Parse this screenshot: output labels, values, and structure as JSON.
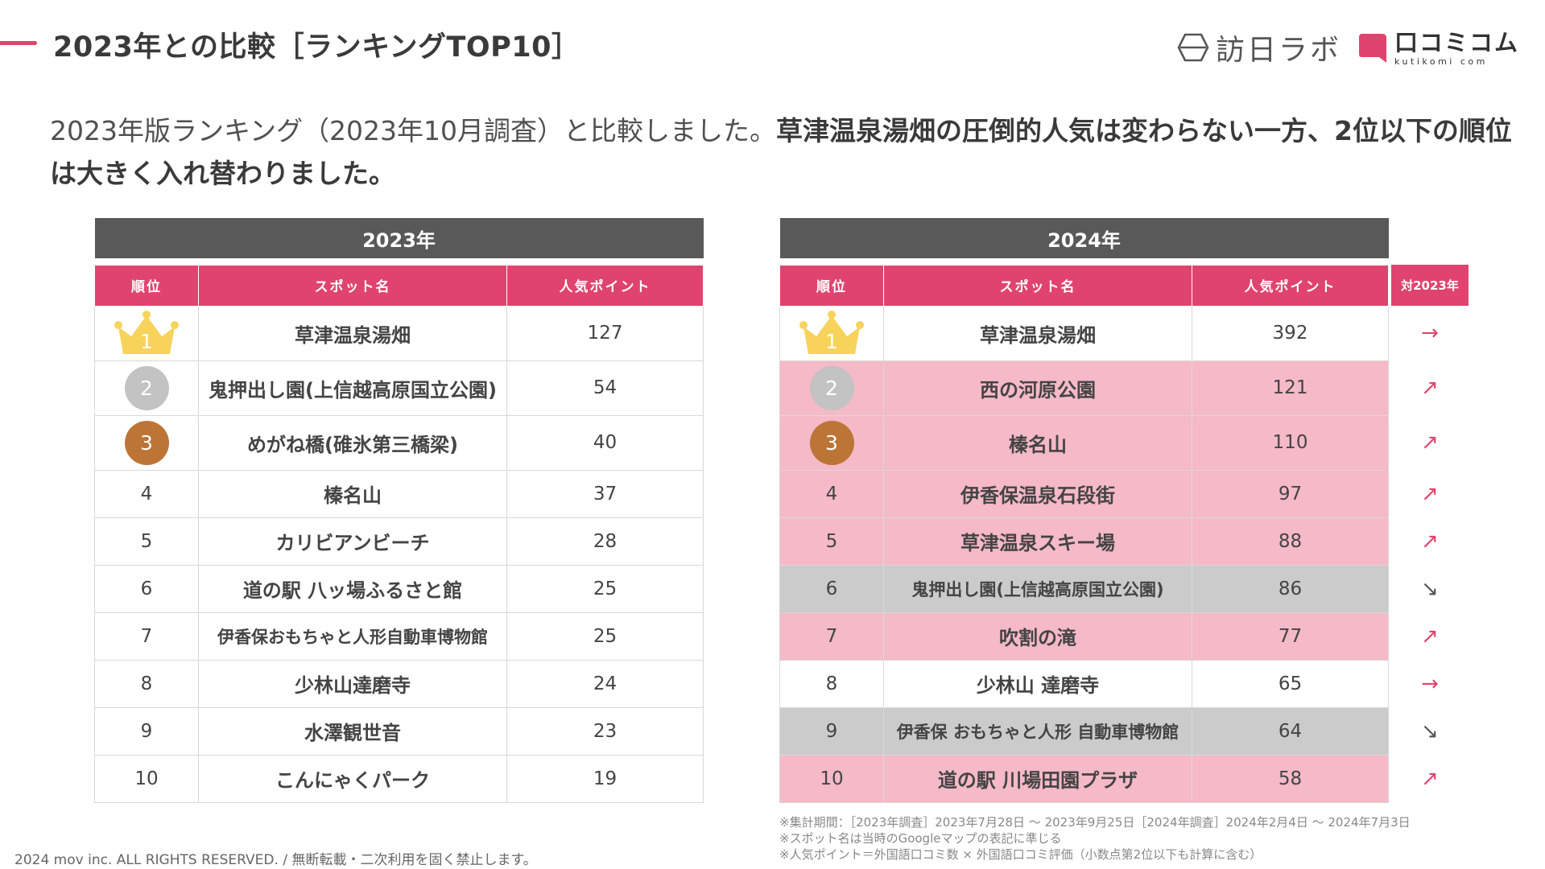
{
  "colors": {
    "accent": "#e0446e",
    "header_dark": "#595959",
    "row_pink": "#f5b9c7",
    "row_gray": "#cbcbcb",
    "gold": "#f7d35c",
    "silver": "#c3c3c3",
    "bronze": "#bd7536",
    "arrow_red": "#e0446e"
  },
  "page": {
    "title": "2023年との比較［ランキングTOP10］",
    "lead_normal": "2023年版ランキング（2023年10月調査）と比較しました。",
    "lead_bold": "草津温泉湯畑の圧倒的人気は変わらない一方、2位以下の順位は大きく入れ替わりました。"
  },
  "logos": {
    "primary": {
      "icon": "hexagon-icon",
      "text": "訪日ラボ"
    },
    "secondary": {
      "icon": "speech-bubble-icon",
      "text": "口コミコム",
      "sub": "kutikomi com"
    }
  },
  "table_headers": {
    "rank": "順位",
    "name": "スポット名",
    "points": "人気ポイント",
    "trend": "対2023年"
  },
  "table_2023": {
    "year": "2023年",
    "rows": [
      {
        "rank": "1",
        "name": "草津温泉湯畑",
        "points": "127",
        "medal": "gold"
      },
      {
        "rank": "2",
        "name": "鬼押出し園(上信越高原国立公園)",
        "points": "54",
        "medal": "silver"
      },
      {
        "rank": "3",
        "name": "めがね橋(碓氷第三橋梁)",
        "points": "40",
        "medal": "bronze"
      },
      {
        "rank": "4",
        "name": "榛名山",
        "points": "37"
      },
      {
        "rank": "5",
        "name": "カリビアンビーチ",
        "points": "28"
      },
      {
        "rank": "6",
        "name": "道の駅 八ッ場ふるさと館",
        "points": "25"
      },
      {
        "rank": "7",
        "name": "伊香保おもちゃと人形自動車博物館",
        "points": "25",
        "small": true
      },
      {
        "rank": "8",
        "name": "少林山達磨寺",
        "points": "24"
      },
      {
        "rank": "9",
        "name": "水澤観世音",
        "points": "23"
      },
      {
        "rank": "10",
        "name": "こんにゃくパーク",
        "points": "19"
      }
    ]
  },
  "table_2024": {
    "year": "2024年",
    "rows": [
      {
        "rank": "1",
        "name": "草津温泉湯畑",
        "points": "392",
        "medal": "gold",
        "trend": "→",
        "status": "same"
      },
      {
        "rank": "2",
        "name": "西の河原公園",
        "points": "121",
        "medal": "silver",
        "trend": "↗",
        "status": "up"
      },
      {
        "rank": "3",
        "name": "榛名山",
        "points": "110",
        "medal": "bronze",
        "trend": "↗",
        "status": "up"
      },
      {
        "rank": "4",
        "name": "伊香保温泉石段街",
        "points": "97",
        "trend": "↗",
        "status": "up"
      },
      {
        "rank": "5",
        "name": "草津温泉スキー場",
        "points": "88",
        "trend": "↗",
        "status": "up"
      },
      {
        "rank": "6",
        "name": "鬼押出し園(上信越高原国立公園)",
        "points": "86",
        "trend": "↘",
        "status": "down",
        "small": true
      },
      {
        "rank": "7",
        "name": "吹割の滝",
        "points": "77",
        "trend": "↗",
        "status": "up"
      },
      {
        "rank": "8",
        "name": "少林山 達磨寺",
        "points": "65",
        "trend": "→",
        "status": "same"
      },
      {
        "rank": "9",
        "name": "伊香保 おもちゃと人形 自動車博物館",
        "points": "64",
        "trend": "↘",
        "status": "down",
        "small": true
      },
      {
        "rank": "10",
        "name": "道の駅 川場田園プラザ",
        "points": "58",
        "trend": "↗",
        "status": "up"
      }
    ]
  },
  "notes": [
    "※集計期間：［2023年調査］2023年7月28日 〜 2023年9月25日［2024年調査］2024年2月4日 〜 2024年7月3日",
    "※スポット名は当時のGoogleマップの表記に準じる",
    "※人気ポイント＝外国語口コミ数 × 外国語口コミ評価（小数点第2位以下も計算に含む）"
  ],
  "footer": "2024 mov inc. ALL RIGHTS RESERVED. / 無断転載・二次利用を固く禁止します。"
}
